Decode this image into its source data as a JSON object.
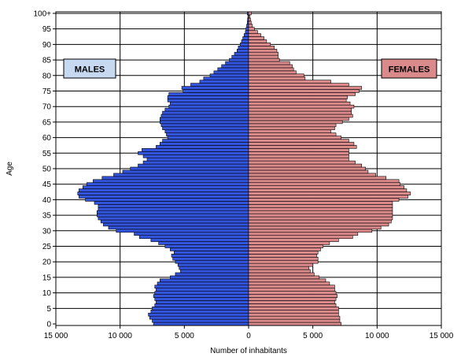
{
  "chart_data": {
    "type": "bar",
    "orientation": "horizontal",
    "layout": "population-pyramid",
    "xlabel": "Number of inhabitants",
    "ylabel": "Age",
    "xlim": [
      -15000,
      15000
    ],
    "ylim": [
      0,
      100
    ],
    "grid": true,
    "x_ticks": [
      -15000,
      -10000,
      -5000,
      0,
      5000,
      10000,
      15000
    ],
    "x_tick_labels": [
      "15 000",
      "10 000",
      "5 000",
      "0",
      "5 000",
      "10 000",
      "15 000"
    ],
    "y_ticks": [
      0,
      5,
      10,
      15,
      20,
      25,
      30,
      35,
      40,
      45,
      50,
      55,
      60,
      65,
      70,
      75,
      80,
      85,
      90,
      95,
      100
    ],
    "y_tick_labels": [
      "0",
      "5",
      "10",
      "15",
      "20",
      "25",
      "30",
      "35",
      "40",
      "45",
      "50",
      "55",
      "60",
      "65",
      "70",
      "75",
      "80",
      "85",
      "90",
      "95",
      "100+"
    ],
    "ages": [
      0,
      1,
      2,
      3,
      4,
      5,
      6,
      7,
      8,
      9,
      10,
      11,
      12,
      13,
      14,
      15,
      16,
      17,
      18,
      19,
      20,
      21,
      22,
      23,
      24,
      25,
      26,
      27,
      28,
      29,
      30,
      31,
      32,
      33,
      34,
      35,
      36,
      37,
      38,
      39,
      40,
      41,
      42,
      43,
      44,
      45,
      46,
      47,
      48,
      49,
      50,
      51,
      52,
      53,
      54,
      55,
      56,
      57,
      58,
      59,
      60,
      61,
      62,
      63,
      64,
      65,
      66,
      67,
      68,
      69,
      70,
      71,
      72,
      73,
      74,
      75,
      76,
      77,
      78,
      79,
      80,
      81,
      82,
      83,
      84,
      85,
      86,
      87,
      88,
      89,
      90,
      91,
      92,
      93,
      94,
      95,
      96,
      97,
      98,
      99,
      100
    ],
    "series": [
      {
        "name": "MALES",
        "color": "#3355dd",
        "label_color": "#c6d9f1",
        "values": [
          7400,
          7500,
          7700,
          7800,
          7600,
          7500,
          7300,
          7200,
          7300,
          7400,
          7300,
          7200,
          7300,
          7100,
          6900,
          6100,
          5700,
          5300,
          5400,
          5500,
          5700,
          5900,
          6000,
          5800,
          6100,
          6500,
          7000,
          7600,
          8500,
          8900,
          10300,
          10900,
          11300,
          11500,
          11700,
          11800,
          11800,
          11700,
          11700,
          12000,
          12700,
          13200,
          13300,
          13200,
          12900,
          12600,
          12100,
          11400,
          10500,
          9800,
          9200,
          8600,
          8200,
          7900,
          8200,
          8600,
          8300,
          7200,
          6900,
          6700,
          6300,
          6400,
          6500,
          6700,
          6800,
          6900,
          6900,
          6800,
          6700,
          6500,
          6200,
          6100,
          6300,
          6300,
          6200,
          5100,
          5200,
          4500,
          3800,
          3500,
          3000,
          2700,
          2400,
          2100,
          1800,
          1500,
          1300,
          1100,
          900,
          800,
          650,
          550,
          450,
          350,
          250,
          200,
          150,
          100,
          80,
          50,
          100
        ]
      },
      {
        "name": "FEMALES",
        "color": "#da8a8a",
        "label_color": "#da8a8a",
        "values": [
          7200,
          7100,
          7100,
          7000,
          7000,
          7000,
          6800,
          6700,
          6800,
          6900,
          6800,
          6700,
          6700,
          6300,
          6000,
          5500,
          5100,
          4800,
          4700,
          5000,
          5400,
          5400,
          5300,
          5400,
          5600,
          5800,
          6300,
          7000,
          8100,
          8500,
          9600,
          10300,
          10900,
          11100,
          11200,
          11200,
          11200,
          11200,
          11200,
          11200,
          11700,
          12400,
          12600,
          12300,
          12100,
          11800,
          11700,
          10700,
          9900,
          9300,
          9100,
          8800,
          8300,
          7800,
          7800,
          7800,
          7800,
          8400,
          8200,
          7800,
          7200,
          6800,
          6400,
          6700,
          6800,
          7300,
          7800,
          8100,
          8000,
          8000,
          8200,
          7900,
          7600,
          7700,
          8300,
          8600,
          8800,
          7800,
          6400,
          4400,
          4300,
          3700,
          3500,
          3400,
          3200,
          2400,
          2300,
          2300,
          2200,
          2000,
          1700,
          1400,
          1200,
          950,
          700,
          450,
          300,
          200,
          150,
          100,
          200
        ]
      }
    ]
  }
}
